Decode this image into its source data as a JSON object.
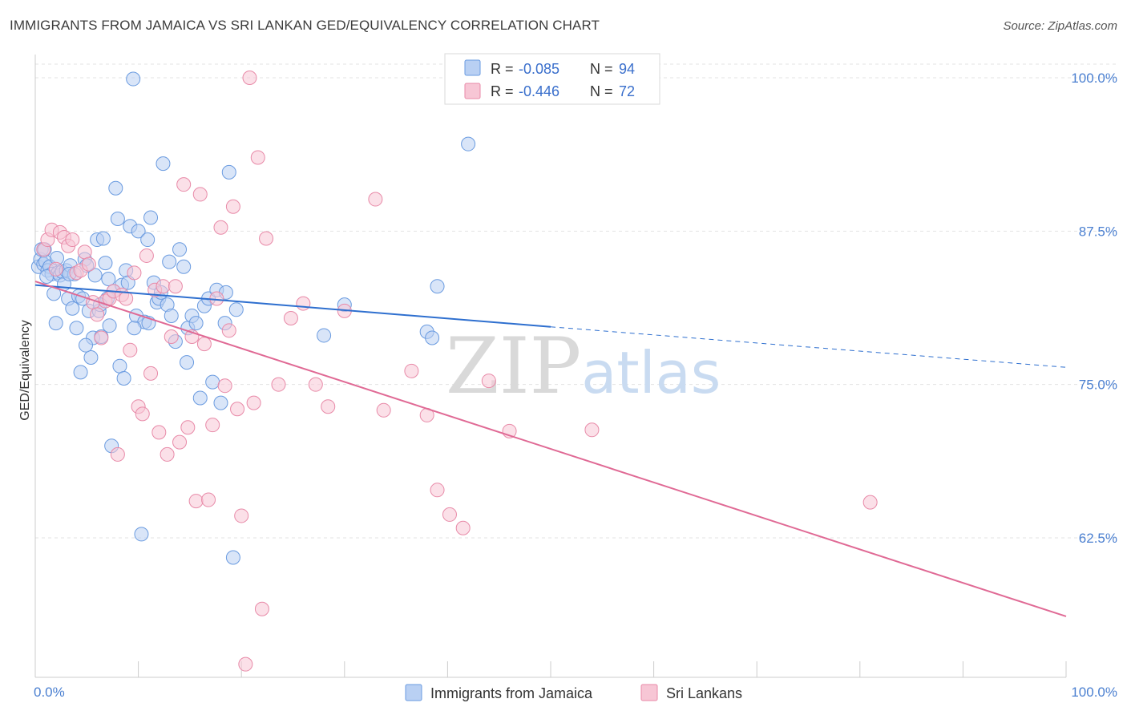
{
  "title": "IMMIGRANTS FROM JAMAICA VS SRI LANKAN GED/EQUIVALENCY CORRELATION CHART",
  "source": "Source: ZipAtlas.com",
  "chart_data": {
    "type": "scatter",
    "ylabel": "GED/Equivalency",
    "xlim": [
      0,
      100
    ],
    "ylim": [
      52,
      102
    ],
    "x_tick_labels": [
      "0.0%",
      "100.0%"
    ],
    "y_ticks": [
      100.0,
      87.5,
      75.0,
      62.5
    ],
    "y_tick_labels": [
      "100.0%",
      "87.5%",
      "75.0%",
      "62.5%"
    ],
    "grid": "horizontal dashed",
    "legend_position": "top-center",
    "watermark": "ZIPatlas",
    "legend": [
      {
        "r_label": "R = ",
        "r_value": "-0.085",
        "n_label": "N = ",
        "n_value": "94",
        "color": "#6a9be0",
        "fill": "#b9d0f3"
      },
      {
        "r_label": "R = ",
        "r_value": "-0.446",
        "n_label": "N = ",
        "n_value": "72",
        "color": "#e88aa8",
        "fill": "#f7c6d5"
      }
    ],
    "series": [
      {
        "name": "Immigrants from Jamaica",
        "color": "#6a9be0",
        "fill": "#b9d0f3",
        "trend": {
          "x0": 0,
          "y0": 83.1,
          "x1": 50,
          "y1": 79.7,
          "dash_to_x": 100,
          "dash_to_y": 76.4
        },
        "points": [
          [
            0.3,
            84.6
          ],
          [
            0.5,
            85.2
          ],
          [
            0.6,
            86.0
          ],
          [
            0.8,
            84.8
          ],
          [
            1.0,
            85.0
          ],
          [
            1.2,
            84.3
          ],
          [
            1.4,
            84.6
          ],
          [
            1.6,
            84.0
          ],
          [
            1.8,
            82.4
          ],
          [
            2.0,
            80.0
          ],
          [
            2.2,
            84.1
          ],
          [
            2.4,
            83.9
          ],
          [
            2.6,
            84.2
          ],
          [
            2.8,
            83.2
          ],
          [
            3.0,
            84.3
          ],
          [
            3.2,
            82.0
          ],
          [
            3.4,
            84.7
          ],
          [
            3.6,
            81.2
          ],
          [
            3.8,
            84.0
          ],
          [
            4.0,
            79.6
          ],
          [
            4.2,
            82.2
          ],
          [
            4.4,
            76.0
          ],
          [
            4.6,
            82.0
          ],
          [
            4.8,
            85.2
          ],
          [
            5.0,
            84.7
          ],
          [
            5.2,
            81.0
          ],
          [
            5.4,
            77.2
          ],
          [
            5.6,
            78.8
          ],
          [
            5.8,
            83.9
          ],
          [
            6.0,
            86.8
          ],
          [
            6.2,
            81.0
          ],
          [
            6.4,
            78.9
          ],
          [
            6.6,
            86.9
          ],
          [
            6.8,
            84.9
          ],
          [
            7.0,
            82.0
          ],
          [
            7.2,
            79.8
          ],
          [
            7.4,
            70.0
          ],
          [
            7.6,
            82.6
          ],
          [
            7.8,
            91.0
          ],
          [
            8.0,
            88.5
          ],
          [
            8.2,
            76.5
          ],
          [
            8.4,
            83.1
          ],
          [
            8.6,
            75.5
          ],
          [
            8.8,
            84.3
          ],
          [
            9.0,
            83.3
          ],
          [
            9.2,
            87.9
          ],
          [
            9.5,
            99.9
          ],
          [
            9.8,
            80.6
          ],
          [
            10.0,
            87.5
          ],
          [
            10.3,
            62.8
          ],
          [
            10.6,
            80.1
          ],
          [
            10.9,
            86.8
          ],
          [
            11.2,
            88.6
          ],
          [
            11.5,
            83.3
          ],
          [
            11.8,
            81.7
          ],
          [
            12.0,
            82.0
          ],
          [
            12.4,
            93.0
          ],
          [
            12.8,
            81.5
          ],
          [
            13.2,
            80.6
          ],
          [
            13.6,
            78.5
          ],
          [
            14.0,
            86.0
          ],
          [
            14.4,
            84.6
          ],
          [
            14.8,
            79.6
          ],
          [
            15.2,
            80.6
          ],
          [
            15.6,
            80.0
          ],
          [
            16.0,
            73.9
          ],
          [
            16.4,
            81.4
          ],
          [
            16.8,
            82.0
          ],
          [
            17.2,
            75.2
          ],
          [
            17.6,
            82.7
          ],
          [
            18.0,
            73.5
          ],
          [
            18.4,
            80.0
          ],
          [
            18.8,
            92.3
          ],
          [
            19.2,
            60.9
          ],
          [
            39.0,
            83.0
          ],
          [
            42.0,
            94.6
          ],
          [
            38.0,
            79.3
          ],
          [
            6.3,
            81.5
          ],
          [
            3.3,
            84.0
          ],
          [
            2.1,
            85.3
          ],
          [
            1.1,
            83.8
          ],
          [
            7.1,
            83.6
          ],
          [
            4.9,
            78.2
          ],
          [
            9.6,
            79.6
          ],
          [
            12.2,
            82.5
          ],
          [
            11.0,
            80.0
          ],
          [
            14.7,
            76.8
          ],
          [
            19.5,
            81.1
          ],
          [
            18.5,
            82.5
          ],
          [
            0.9,
            86.0
          ],
          [
            13.0,
            85.0
          ],
          [
            28.0,
            79.0
          ],
          [
            38.5,
            78.8
          ],
          [
            30.0,
            81.5
          ]
        ]
      },
      {
        "name": "Sri Lankans",
        "color": "#e88aa8",
        "fill": "#f7c6d5",
        "trend": {
          "x0": 0,
          "y0": 83.4,
          "x1": 100,
          "y1": 56.1
        },
        "points": [
          [
            0.8,
            86.0
          ],
          [
            1.2,
            86.8
          ],
          [
            1.6,
            87.6
          ],
          [
            2.0,
            84.4
          ],
          [
            2.4,
            87.4
          ],
          [
            2.8,
            87.0
          ],
          [
            3.2,
            86.3
          ],
          [
            3.6,
            86.8
          ],
          [
            4.0,
            84.1
          ],
          [
            4.4,
            84.3
          ],
          [
            4.8,
            85.8
          ],
          [
            5.2,
            84.8
          ],
          [
            5.6,
            81.7
          ],
          [
            6.0,
            80.7
          ],
          [
            6.4,
            78.8
          ],
          [
            6.8,
            81.8
          ],
          [
            7.2,
            82.0
          ],
          [
            7.6,
            82.6
          ],
          [
            8.0,
            69.3
          ],
          [
            8.4,
            82.3
          ],
          [
            8.8,
            82.0
          ],
          [
            9.2,
            77.8
          ],
          [
            9.6,
            84.1
          ],
          [
            10.0,
            73.2
          ],
          [
            10.4,
            72.6
          ],
          [
            10.8,
            85.5
          ],
          [
            11.2,
            75.9
          ],
          [
            11.6,
            82.7
          ],
          [
            12.0,
            71.1
          ],
          [
            12.4,
            83.0
          ],
          [
            12.8,
            69.3
          ],
          [
            13.2,
            78.9
          ],
          [
            13.6,
            83.0
          ],
          [
            14.0,
            70.3
          ],
          [
            14.4,
            91.3
          ],
          [
            14.8,
            71.5
          ],
          [
            15.2,
            78.9
          ],
          [
            15.6,
            65.5
          ],
          [
            16.0,
            90.5
          ],
          [
            16.4,
            78.3
          ],
          [
            16.8,
            65.6
          ],
          [
            17.2,
            71.7
          ],
          [
            17.6,
            82.0
          ],
          [
            18.0,
            87.8
          ],
          [
            18.4,
            74.9
          ],
          [
            18.8,
            79.4
          ],
          [
            19.2,
            89.5
          ],
          [
            19.6,
            73.0
          ],
          [
            20.0,
            64.3
          ],
          [
            20.4,
            52.2
          ],
          [
            20.8,
            100.0
          ],
          [
            21.2,
            73.5
          ],
          [
            21.6,
            93.5
          ],
          [
            22.0,
            56.7
          ],
          [
            22.4,
            86.9
          ],
          [
            23.6,
            75.0
          ],
          [
            24.8,
            80.4
          ],
          [
            26.0,
            81.6
          ],
          [
            27.2,
            75.0
          ],
          [
            28.4,
            73.2
          ],
          [
            30.0,
            81.0
          ],
          [
            33.0,
            90.1
          ],
          [
            33.8,
            72.9
          ],
          [
            36.5,
            76.1
          ],
          [
            38.0,
            72.5
          ],
          [
            39.0,
            66.4
          ],
          [
            40.2,
            64.4
          ],
          [
            41.5,
            63.3
          ],
          [
            44.0,
            75.3
          ],
          [
            46.0,
            71.2
          ],
          [
            54.0,
            71.3
          ],
          [
            81.0,
            65.4
          ]
        ]
      }
    ]
  }
}
